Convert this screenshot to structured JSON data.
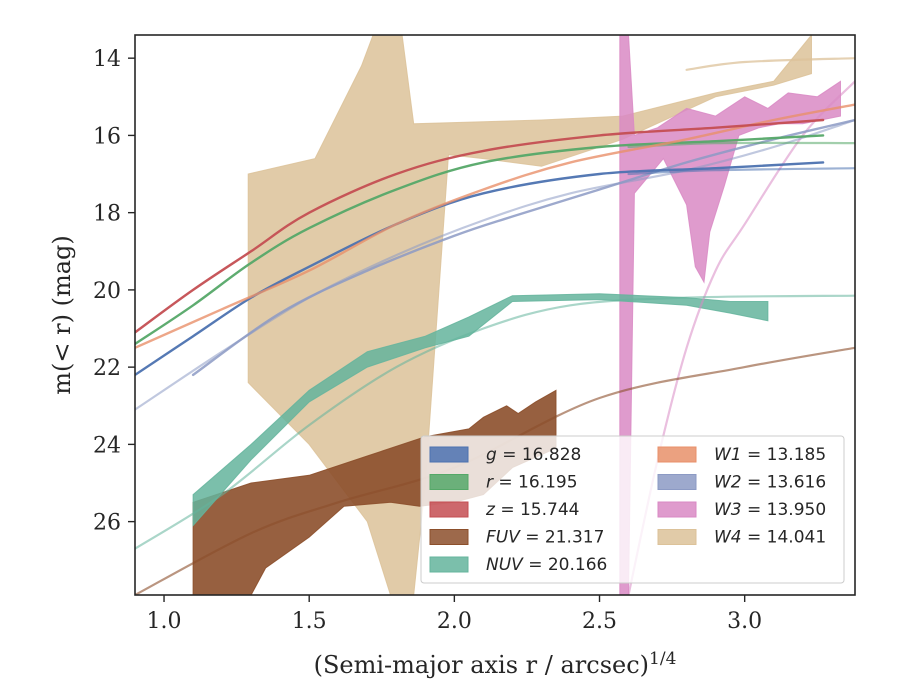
{
  "chart_data": {
    "type": "area",
    "xlabel": "(Semi-major axis r / arcsec)",
    "xlabel_exponent": "1/4",
    "ylabel": "m(< r) (mag)",
    "xlim": [
      0.9,
      3.38
    ],
    "ylim": [
      27.9,
      13.4
    ],
    "y_inverted": true,
    "grid": false,
    "legend_position": "lower-right",
    "x_ticks": [
      1.0,
      1.5,
      2.0,
      2.5,
      3.0
    ],
    "x_tick_labels": [
      "1.0",
      "1.5",
      "2.0",
      "2.5",
      "3.0"
    ],
    "y_ticks": [
      14,
      16,
      18,
      20,
      22,
      24,
      26
    ],
    "y_tick_labels": [
      "14",
      "16",
      "18",
      "20",
      "22",
      "24",
      "26"
    ],
    "legend": [
      {
        "band": "g",
        "value": "16.828"
      },
      {
        "band": "r",
        "value": "16.195"
      },
      {
        "band": "z",
        "value": "15.744"
      },
      {
        "band": "FUV",
        "value": "21.317"
      },
      {
        "band": "NUV",
        "value": "20.166"
      },
      {
        "band": "W1",
        "value": "13.185"
      },
      {
        "band": "W2",
        "value": "13.616"
      },
      {
        "band": "W3",
        "value": "13.950"
      },
      {
        "band": "W4",
        "value": "14.041"
      }
    ],
    "colors": {
      "g": "#4c72b0",
      "r": "#55a868",
      "z": "#c44e52",
      "FUV": "#8c4f2b",
      "NUV": "#64b49c",
      "W1": "#e8906a",
      "W2": "#8c9ac4",
      "W3": "#d98ac4",
      "W4": "#dcc299"
    },
    "series": [
      {
        "band": "W4",
        "kind": "band",
        "opacity": 0.85,
        "upper": [
          [
            1.29,
            17.0
          ],
          [
            1.52,
            16.6
          ],
          [
            1.68,
            14.2
          ],
          [
            1.72,
            13.4
          ],
          [
            1.82,
            13.4
          ],
          [
            1.86,
            15.7
          ],
          [
            2.3,
            15.6
          ],
          [
            2.58,
            15.5
          ],
          [
            2.9,
            14.9
          ],
          [
            3.1,
            14.6
          ],
          [
            3.23,
            13.4
          ]
        ],
        "lower": [
          [
            3.23,
            14.4
          ],
          [
            3.1,
            14.7
          ],
          [
            2.9,
            15.0
          ],
          [
            2.58,
            16.1
          ],
          [
            2.3,
            16.8
          ],
          [
            2.1,
            16.6
          ],
          [
            1.98,
            16.5
          ],
          [
            1.9,
            25.0
          ],
          [
            1.86,
            27.9
          ],
          [
            1.78,
            27.9
          ],
          [
            1.7,
            26.0
          ],
          [
            1.5,
            24.0
          ],
          [
            1.29,
            22.4
          ]
        ]
      },
      {
        "band": "W3",
        "kind": "band",
        "opacity": 0.85,
        "upper": [
          [
            2.57,
            13.4
          ],
          [
            2.6,
            13.4
          ],
          [
            2.62,
            16.0
          ],
          [
            2.7,
            15.8
          ],
          [
            2.8,
            15.3
          ],
          [
            2.9,
            15.5
          ],
          [
            3.0,
            15.0
          ],
          [
            3.08,
            15.3
          ],
          [
            3.15,
            14.9
          ],
          [
            3.25,
            15.0
          ],
          [
            3.33,
            14.6
          ]
        ],
        "lower": [
          [
            3.33,
            15.5
          ],
          [
            3.2,
            15.7
          ],
          [
            3.12,
            15.7
          ],
          [
            3.05,
            15.8
          ],
          [
            2.98,
            16.0
          ],
          [
            2.93,
            17.3
          ],
          [
            2.88,
            18.5
          ],
          [
            2.86,
            19.8
          ],
          [
            2.83,
            19.4
          ],
          [
            2.8,
            17.8
          ],
          [
            2.72,
            16.6
          ],
          [
            2.62,
            17.5
          ],
          [
            2.6,
            27.9
          ],
          [
            2.57,
            27.9
          ]
        ]
      },
      {
        "band": "FUV",
        "kind": "band",
        "opacity": 0.9,
        "upper": [
          [
            1.1,
            25.5
          ],
          [
            1.3,
            25.0
          ],
          [
            1.5,
            24.8
          ],
          [
            1.7,
            24.3
          ],
          [
            1.9,
            23.8
          ],
          [
            2.05,
            23.6
          ],
          [
            2.1,
            23.3
          ],
          [
            2.18,
            23.0
          ],
          [
            2.22,
            23.2
          ],
          [
            2.28,
            22.9
          ],
          [
            2.35,
            22.6
          ]
        ],
        "lower": [
          [
            2.35,
            24.1
          ],
          [
            2.2,
            24.6
          ],
          [
            2.1,
            25.3
          ],
          [
            2.0,
            25.5
          ],
          [
            1.88,
            25.6
          ],
          [
            1.78,
            25.5
          ],
          [
            1.62,
            25.6
          ],
          [
            1.5,
            26.4
          ],
          [
            1.35,
            27.2
          ],
          [
            1.3,
            27.9
          ],
          [
            1.1,
            27.9
          ]
        ]
      },
      {
        "band": "NUV",
        "kind": "band",
        "opacity": 0.85,
        "upper": [
          [
            1.1,
            25.3
          ],
          [
            1.3,
            24.0
          ],
          [
            1.5,
            22.6
          ],
          [
            1.7,
            21.6
          ],
          [
            1.9,
            21.2
          ],
          [
            2.05,
            20.7
          ],
          [
            2.2,
            20.15
          ],
          [
            2.5,
            20.1
          ],
          [
            2.8,
            20.2
          ],
          [
            2.95,
            20.3
          ],
          [
            3.08,
            20.3
          ]
        ],
        "lower": [
          [
            3.08,
            20.8
          ],
          [
            2.95,
            20.6
          ],
          [
            2.8,
            20.4
          ],
          [
            2.5,
            20.25
          ],
          [
            2.2,
            20.3
          ],
          [
            2.05,
            21.2
          ],
          [
            1.9,
            21.5
          ],
          [
            1.7,
            22.0
          ],
          [
            1.5,
            22.9
          ],
          [
            1.3,
            24.4
          ],
          [
            1.1,
            26.1
          ]
        ]
      },
      {
        "band": "W4",
        "kind": "curve",
        "alpha": 0.75,
        "width": 2.2,
        "points": [
          [
            2.8,
            14.3
          ],
          [
            3.0,
            14.1
          ],
          [
            3.38,
            14.0
          ]
        ]
      },
      {
        "band": "W3",
        "kind": "curve",
        "alpha": 0.55,
        "width": 2.2,
        "points": [
          [
            2.6,
            27.9
          ],
          [
            2.7,
            24.4
          ],
          [
            2.8,
            21.5
          ],
          [
            2.9,
            19.5
          ],
          [
            3.0,
            18.3
          ],
          [
            3.2,
            16.0
          ],
          [
            3.38,
            14.6
          ]
        ]
      },
      {
        "band": "FUV",
        "kind": "curve",
        "alpha": 0.6,
        "width": 2.2,
        "points": [
          [
            0.9,
            27.9
          ],
          [
            1.3,
            26.3
          ],
          [
            1.6,
            25.5
          ],
          [
            2.0,
            24.6
          ],
          [
            2.5,
            22.8
          ],
          [
            3.0,
            22.0
          ],
          [
            3.38,
            21.5
          ]
        ]
      },
      {
        "band": "NUV",
        "kind": "curve",
        "alpha": 0.55,
        "width": 2.2,
        "points": [
          [
            0.9,
            26.7
          ],
          [
            1.2,
            25.3
          ],
          [
            1.5,
            23.5
          ],
          [
            1.8,
            22.0
          ],
          [
            2.1,
            21.0
          ],
          [
            2.4,
            20.4
          ],
          [
            2.8,
            20.2
          ],
          [
            3.38,
            20.15
          ]
        ]
      },
      {
        "band": "W2",
        "kind": "curve",
        "alpha": 0.55,
        "width": 2.2,
        "points": [
          [
            0.9,
            23.1
          ],
          [
            1.2,
            21.6
          ],
          [
            1.5,
            20.2
          ],
          [
            1.8,
            19.1
          ],
          [
            2.1,
            18.2
          ],
          [
            2.4,
            17.5
          ],
          [
            2.8,
            16.9
          ],
          [
            3.1,
            16.3
          ],
          [
            3.38,
            15.6
          ]
        ]
      },
      {
        "band": "W2",
        "kind": "curve",
        "alpha": 0.85,
        "width": 2.4,
        "points": [
          [
            1.1,
            22.2
          ],
          [
            1.4,
            20.6
          ],
          [
            1.7,
            19.5
          ],
          [
            2.0,
            18.6
          ],
          [
            2.2,
            18.1
          ],
          [
            2.5,
            17.4
          ],
          [
            2.8,
            16.7
          ],
          [
            3.1,
            16.1
          ],
          [
            3.38,
            15.6
          ]
        ]
      },
      {
        "band": "g",
        "kind": "curve",
        "alpha": 0.55,
        "width": 2.2,
        "points": [
          [
            2.6,
            17.0
          ],
          [
            2.9,
            16.9
          ],
          [
            3.38,
            16.85
          ]
        ]
      },
      {
        "band": "g",
        "kind": "curve",
        "alpha": 0.95,
        "width": 2.4,
        "points": [
          [
            0.9,
            22.2
          ],
          [
            1.1,
            21.2
          ],
          [
            1.3,
            20.2
          ],
          [
            1.5,
            19.4
          ],
          [
            1.8,
            18.3
          ],
          [
            2.1,
            17.5
          ],
          [
            2.5,
            17.0
          ],
          [
            2.9,
            16.85
          ],
          [
            3.27,
            16.7
          ]
        ]
      },
      {
        "band": "r",
        "kind": "curve",
        "alpha": 0.55,
        "width": 2.2,
        "points": [
          [
            2.6,
            16.3
          ],
          [
            2.9,
            16.2
          ],
          [
            3.38,
            16.2
          ]
        ]
      },
      {
        "band": "r",
        "kind": "curve",
        "alpha": 0.95,
        "width": 2.4,
        "points": [
          [
            0.9,
            21.4
          ],
          [
            1.1,
            20.4
          ],
          [
            1.3,
            19.3
          ],
          [
            1.5,
            18.4
          ],
          [
            1.8,
            17.4
          ],
          [
            2.1,
            16.7
          ],
          [
            2.5,
            16.3
          ],
          [
            2.9,
            16.15
          ],
          [
            3.27,
            16.0
          ]
        ]
      },
      {
        "band": "W1",
        "kind": "curve",
        "alpha": 0.8,
        "width": 2.4,
        "points": [
          [
            0.9,
            21.5
          ],
          [
            1.2,
            20.5
          ],
          [
            1.5,
            19.5
          ],
          [
            1.8,
            18.3
          ],
          [
            2.1,
            17.4
          ],
          [
            2.4,
            16.7
          ],
          [
            2.8,
            16.1
          ],
          [
            3.1,
            15.6
          ],
          [
            3.38,
            15.2
          ]
        ]
      },
      {
        "band": "z",
        "kind": "curve",
        "alpha": 0.95,
        "width": 2.4,
        "points": [
          [
            0.9,
            21.1
          ],
          [
            1.1,
            20.0
          ],
          [
            1.3,
            19.0
          ],
          [
            1.5,
            18.0
          ],
          [
            1.8,
            17.0
          ],
          [
            2.1,
            16.4
          ],
          [
            2.5,
            16.0
          ],
          [
            2.9,
            15.8
          ],
          [
            3.27,
            15.6
          ]
        ]
      }
    ]
  }
}
